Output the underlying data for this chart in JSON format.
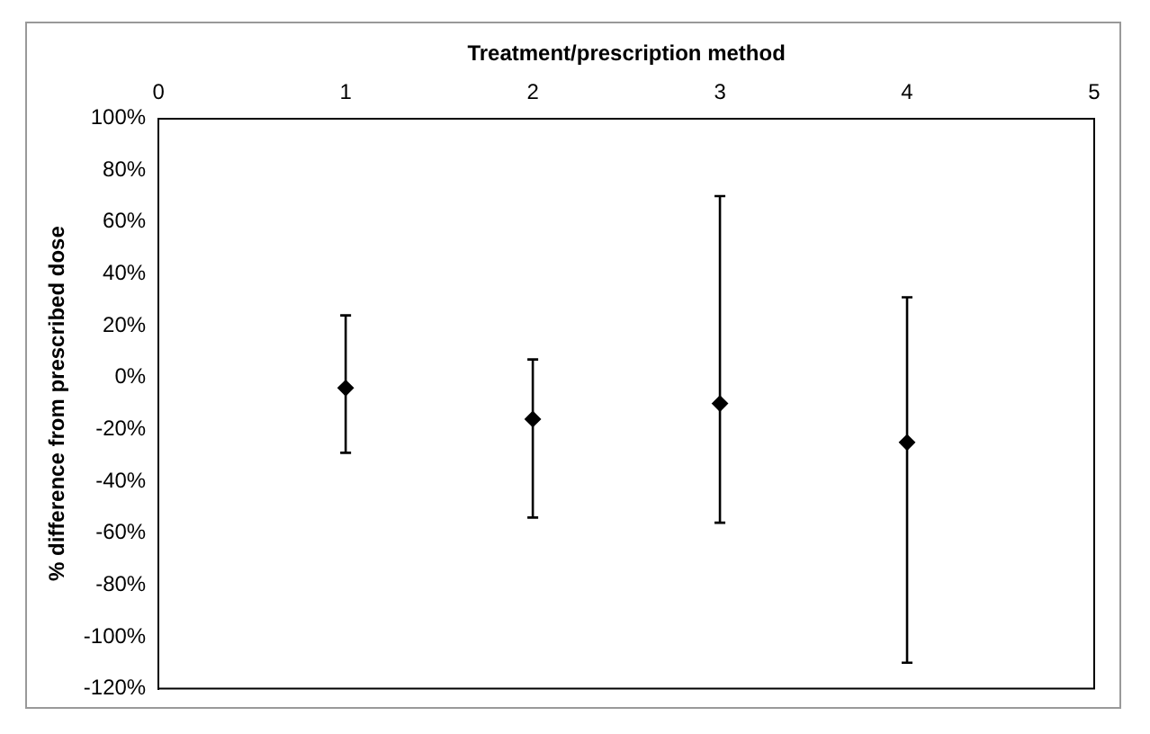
{
  "chart_data": {
    "type": "scatter",
    "xlabel": "Treatment/prescription method",
    "ylabel": "% difference from prescribed dose",
    "x": [
      1,
      2,
      3,
      4
    ],
    "series": [
      {
        "color": "#000000",
        "values": [
          -4,
          -16,
          -10,
          -25
        ],
        "errors": [
          [
            -29,
            24
          ],
          [
            -54,
            7
          ],
          [
            -56,
            70
          ],
          [
            -110,
            31
          ]
        ]
      }
    ],
    "xlim": [
      0,
      5
    ],
    "xticks": [
      0,
      1,
      2,
      3,
      4,
      5
    ],
    "ylim": [
      -120,
      100
    ],
    "yticks": [
      {
        "value": -120,
        "label": "-120%"
      },
      {
        "value": -100,
        "label": "-100%"
      },
      {
        "value": -80,
        "label": "-80%"
      },
      {
        "value": -60,
        "label": "-60%"
      },
      {
        "value": -40,
        "label": "-40%"
      },
      {
        "value": -20,
        "label": "-20%"
      },
      {
        "value": 0,
        "label": "0%"
      },
      {
        "value": 20,
        "label": "20%"
      },
      {
        "value": 40,
        "label": "40%"
      },
      {
        "value": 60,
        "label": "60%"
      },
      {
        "value": 80,
        "label": "80%"
      },
      {
        "value": 100,
        "label": "100%"
      }
    ],
    "grid": false,
    "legend": false,
    "marker": "diamond"
  }
}
